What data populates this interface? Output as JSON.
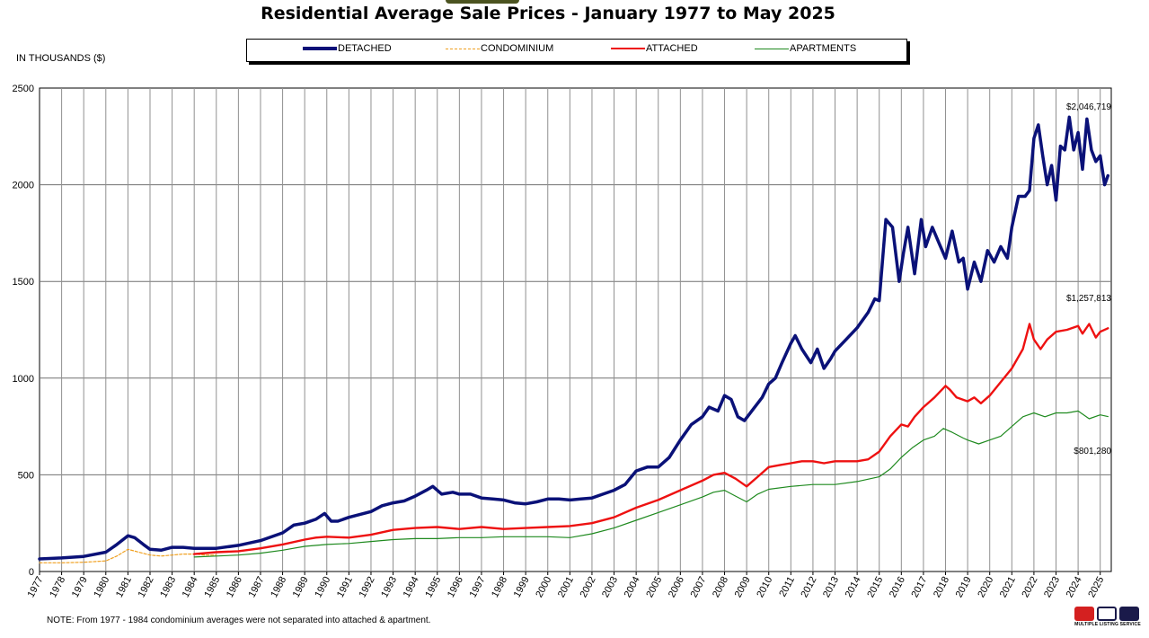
{
  "header": {
    "title": "Residential Average Sale Prices  -  January 1977 to May 2025",
    "units_label": "IN THOUSANDS ($)"
  },
  "colors": {
    "detached": "#0a1178",
    "condominium": "#f0a020",
    "attached": "#ee1111",
    "apartments": "#1f8a1f",
    "grid": "#808080"
  },
  "chart_data": {
    "type": "line",
    "title": "Residential Average Sale Prices  -  January 1977 to May 2025",
    "ylabel": "IN THOUSANDS ($)",
    "xlabel": "",
    "ylim": [
      0,
      2500
    ],
    "xlim": [
      1977.0,
      2025.5
    ],
    "yticks": [
      "0",
      "500",
      "1000",
      "1500",
      "2000",
      "2500"
    ],
    "categories": [
      "1977",
      "1978",
      "1979",
      "1980",
      "1981",
      "1982",
      "1983",
      "1984",
      "1985",
      "1986",
      "1987",
      "1988",
      "1989",
      "1990",
      "1991",
      "1992",
      "1993",
      "1994",
      "1995",
      "1996",
      "1997",
      "1998",
      "1999",
      "2000",
      "2001",
      "2002",
      "2003",
      "2004",
      "2005",
      "2006",
      "2007",
      "2008",
      "2009",
      "2010",
      "2011",
      "2012",
      "2013",
      "2014",
      "2015",
      "2016",
      "2017",
      "2018",
      "2019",
      "2020",
      "2021",
      "2022",
      "2023",
      "2024",
      "2025"
    ],
    "legend_position": "top-center",
    "series": [
      {
        "name": "DETACHED",
        "key": "detached",
        "x": [
          1977,
          1978,
          1979,
          1980,
          1980.5,
          1981,
          1981.3,
          1981.7,
          1982,
          1982.5,
          1983,
          1983.5,
          1984,
          1984.5,
          1985,
          1986,
          1987,
          1988,
          1988.5,
          1989,
          1989.5,
          1989.9,
          1990.2,
          1990.5,
          1991,
          1992,
          1992.5,
          1993,
          1993.5,
          1994,
          1994.5,
          1994.8,
          1995.2,
          1995.7,
          1996,
          1996.5,
          1997,
          1997.5,
          1998,
          1998.5,
          1999,
          1999.5,
          2000,
          2000.5,
          2001,
          2001.5,
          2002,
          2002.5,
          2003,
          2003.5,
          2004,
          2004.5,
          2005,
          2005.5,
          2006,
          2006.5,
          2007,
          2007.3,
          2007.7,
          2008,
          2008.3,
          2008.6,
          2008.9,
          2009.3,
          2009.7,
          2010,
          2010.3,
          2010.6,
          2011,
          2011.2,
          2011.5,
          2011.9,
          2012.2,
          2012.5,
          2012.8,
          2013,
          2013.5,
          2014,
          2014.5,
          2014.8,
          2015,
          2015.3,
          2015.6,
          2015.9,
          2016.1,
          2016.3,
          2016.6,
          2016.9,
          2017.1,
          2017.4,
          2017.7,
          2018,
          2018.3,
          2018.6,
          2018.8,
          2019,
          2019.3,
          2019.6,
          2019.9,
          2020.2,
          2020.5,
          2020.8,
          2021,
          2021.3,
          2021.6,
          2021.8,
          2022,
          2022.2,
          2022.4,
          2022.6,
          2022.8,
          2023,
          2023.2,
          2023.4,
          2023.6,
          2023.8,
          2024,
          2024.2,
          2024.4,
          2024.6,
          2024.8,
          2025,
          2025.2,
          2025.35
        ],
        "y": [
          65,
          70,
          78,
          100,
          140,
          185,
          175,
          140,
          115,
          110,
          125,
          125,
          120,
          120,
          120,
          135,
          160,
          200,
          240,
          250,
          270,
          300,
          260,
          260,
          280,
          310,
          340,
          355,
          365,
          390,
          420,
          440,
          400,
          410,
          400,
          400,
          380,
          375,
          370,
          355,
          350,
          360,
          375,
          375,
          370,
          375,
          380,
          400,
          420,
          450,
          520,
          540,
          540,
          590,
          680,
          760,
          800,
          850,
          830,
          910,
          890,
          800,
          780,
          840,
          900,
          970,
          1000,
          1080,
          1180,
          1220,
          1150,
          1080,
          1150,
          1050,
          1100,
          1140,
          1200,
          1260,
          1340,
          1410,
          1400,
          1820,
          1780,
          1500,
          1650,
          1780,
          1540,
          1820,
          1680,
          1780,
          1700,
          1620,
          1760,
          1600,
          1620,
          1460,
          1600,
          1500,
          1660,
          1600,
          1680,
          1620,
          1780,
          1940,
          1940,
          1970,
          2240,
          2310,
          2150,
          2000,
          2100,
          1920,
          2200,
          2180,
          2350,
          2180,
          2270,
          2080,
          2340,
          2180,
          2120,
          2150,
          2000,
          2047
        ]
      },
      {
        "name": "CONDOMINIUM",
        "key": "condominium",
        "x": [
          1977,
          1978,
          1979,
          1980,
          1980.5,
          1981,
          1981.5,
          1982,
          1982.5,
          1983,
          1983.5,
          1984,
          1984.5,
          1985
        ],
        "y": [
          45,
          45,
          48,
          55,
          80,
          115,
          100,
          85,
          80,
          85,
          90,
          90,
          85,
          85
        ]
      },
      {
        "name": "ATTACHED",
        "key": "attached",
        "x": [
          1984,
          1985,
          1986,
          1987,
          1988,
          1989,
          1989.5,
          1990,
          1991,
          1992,
          1993,
          1994,
          1995,
          1996,
          1997,
          1998,
          1999,
          2000,
          2001,
          2002,
          2003,
          2004,
          2005,
          2006,
          2007,
          2007.5,
          2008,
          2008.5,
          2009,
          2009.5,
          2010,
          2010.5,
          2011,
          2011.5,
          2012,
          2012.5,
          2013,
          2013.5,
          2014,
          2014.5,
          2015,
          2015.5,
          2016,
          2016.3,
          2016.6,
          2017,
          2017.5,
          2018,
          2018.2,
          2018.5,
          2019,
          2019.3,
          2019.6,
          2020,
          2020.5,
          2021,
          2021.5,
          2021.8,
          2022,
          2022.3,
          2022.6,
          2023,
          2023.5,
          2024,
          2024.2,
          2024.5,
          2024.8,
          2025,
          2025.35
        ],
        "y": [
          90,
          100,
          105,
          120,
          140,
          165,
          175,
          180,
          175,
          190,
          215,
          225,
          230,
          220,
          230,
          220,
          225,
          230,
          235,
          250,
          280,
          330,
          370,
          420,
          470,
          500,
          510,
          480,
          440,
          490,
          540,
          550,
          560,
          570,
          570,
          560,
          570,
          570,
          570,
          580,
          620,
          700,
          760,
          750,
          800,
          850,
          900,
          960,
          940,
          900,
          880,
          900,
          870,
          910,
          980,
          1050,
          1150,
          1280,
          1200,
          1150,
          1200,
          1240,
          1250,
          1270,
          1230,
          1280,
          1210,
          1240,
          1258
        ]
      },
      {
        "name": "APARTMENTS",
        "key": "apartments",
        "x": [
          1984,
          1985,
          1986,
          1987,
          1988,
          1989,
          1990,
          1991,
          1992,
          1993,
          1994,
          1995,
          1996,
          1997,
          1998,
          1999,
          2000,
          2001,
          2002,
          2003,
          2004,
          2005,
          2006,
          2007,
          2007.5,
          2008,
          2008.5,
          2009,
          2009.5,
          2010,
          2011,
          2012,
          2013,
          2014,
          2015,
          2015.5,
          2016,
          2016.5,
          2017,
          2017.5,
          2017.9,
          2018.3,
          2018.8,
          2019,
          2019.5,
          2020,
          2020.5,
          2021,
          2021.5,
          2022,
          2022.5,
          2023,
          2023.5,
          2024,
          2024.5,
          2025,
          2025.35
        ],
        "y": [
          75,
          80,
          85,
          95,
          110,
          130,
          140,
          145,
          155,
          165,
          170,
          170,
          175,
          175,
          180,
          180,
          180,
          175,
          195,
          225,
          265,
          305,
          345,
          385,
          410,
          420,
          390,
          360,
          400,
          425,
          440,
          450,
          450,
          465,
          490,
          530,
          590,
          640,
          680,
          700,
          740,
          720,
          690,
          680,
          660,
          680,
          700,
          750,
          800,
          820,
          800,
          820,
          820,
          830,
          790,
          810,
          801
        ]
      }
    ],
    "annotations": [
      "$2,046,719",
      "$1,257,813",
      "$801,280"
    ]
  },
  "footer": {
    "note": "NOTE:  From 1977 - 1984 condominium averages were not separated into attached & apartment.",
    "logo_text": "MULTIPLE LISTING SERVICE"
  }
}
